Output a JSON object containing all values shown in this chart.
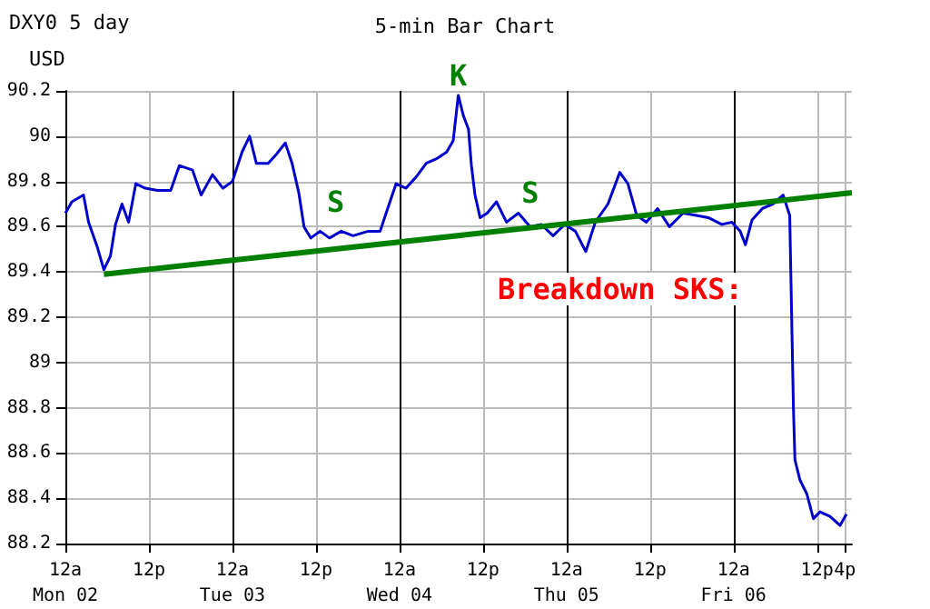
{
  "chart_data": {
    "type": "line",
    "title": "DXY0 5 day",
    "subtitle": "5-min Bar Chart",
    "ylabel": "USD",
    "xlim": [
      "--02-02T00:00",
      "--02-06T17:00"
    ],
    "ylim": [
      88.2,
      90.2
    ],
    "xticks": [
      {
        "value": "--02-02T00:00",
        "label": "12a\nMon 02"
      },
      {
        "value": "--02-02T12:00",
        "label": "12p"
      },
      {
        "value": "--02-03T00:00",
        "label": "12a\nTue 03"
      },
      {
        "value": "--02-03T12:00",
        "label": "12p"
      },
      {
        "value": "--02-04T00:00",
        "label": "12a\nWed 04"
      },
      {
        "value": "--02-04T12:00",
        "label": "12p"
      },
      {
        "value": "--02-05T00:00",
        "label": "12a\nThu 05"
      },
      {
        "value": "--02-05T12:00",
        "label": "12p"
      },
      {
        "value": "--02-06T00:00",
        "label": "12a\nFri 06"
      },
      {
        "value": "--02-06T12:00",
        "label": "12p"
      },
      {
        "value": "--02-06T16:00",
        "label": "4p"
      }
    ],
    "yticks": [
      88.2,
      88.4,
      88.6,
      88.8,
      89,
      89.2,
      89.4,
      89.6,
      89.8,
      90,
      90.2
    ],
    "grid": true,
    "marker": "none",
    "series": [
      {
        "color": "#0000cc",
        "x": [
          "--02-02T00:00",
          "--02-02T00:56",
          "--02-02T02:36",
          "--02-02T03:20",
          "--02-02T04:35",
          "--02-02T05:32",
          "--02-02T06:28",
          "--02-02T07:12",
          "--02-02T08:08",
          "--02-02T09:05",
          "--02-02T10:07",
          "--02-02T11:29",
          "--02-02T13:14",
          "--02-02T15:08",
          "--02-02T16:22",
          "--02-02T18:16",
          "--02-02T19:30",
          "--02-02T21:08",
          "--02-02T22:38",
          "--02-03T00:00",
          "--02-03T01:23",
          "--02-03T02:28",
          "--02-03T03:26",
          "--02-03T05:08",
          "--02-03T06:19",
          "--02-03T07:36",
          "--02-03T08:34",
          "--02-03T09:32",
          "--02-03T10:17",
          "--02-03T11:15",
          "--02-03T12:36",
          "--02-03T13:56",
          "--02-03T15:38",
          "--02-03T17:20",
          "--02-03T19:31",
          "--02-03T21:13",
          "--02-03T22:18",
          "--02-03T23:31",
          "--02-04T00:56",
          "--02-04T02:24",
          "--02-04T03:51",
          "--02-04T05:19",
          "--02-04T06:47",
          "--02-04T07:43",
          "--02-04T08:27",
          "--02-04T09:11",
          "--02-04T09:55",
          "--02-04T10:20",
          "--02-04T10:51",
          "--02-04T11:35",
          "--02-04T12:36",
          "--02-04T13:56",
          "--02-04T15:23",
          "--02-04T17:05",
          "--02-04T18:47",
          "--02-04T20:22",
          "--02-04T22:04",
          "--02-04T23:45",
          "--02-05T01:16",
          "--02-05T02:46",
          "--02-05T04:08",
          "--02-05T05:57",
          "--02-05T07:39",
          "--02-05T08:49",
          "--02-05T10:05",
          "--02-05T11:28",
          "--02-05T13:05",
          "--02-05T14:47",
          "--02-05T16:44",
          "--02-05T18:40",
          "--02-05T20:22",
          "--02-05T22:18",
          "--02-05T23:45",
          "--02-06T00:57",
          "--02-06T01:42",
          "--02-06T02:39",
          "--02-06T04:08",
          "--02-06T05:38",
          "--02-06T07:07",
          "--02-06T08:04",
          "--02-06T08:36",
          "--02-06T08:49",
          "--02-06T09:33",
          "--02-06T10:31",
          "--02-06T11:28",
          "--02-06T12:25",
          "--02-06T13:51",
          "--02-06T15:18",
          "--02-06T16:13"
        ],
        "values": [
          89.66,
          89.71,
          89.74,
          89.62,
          89.51,
          89.41,
          89.47,
          89.61,
          89.7,
          89.62,
          89.79,
          89.77,
          89.76,
          89.76,
          89.87,
          89.85,
          89.74,
          89.83,
          89.77,
          89.8,
          89.93,
          90.0,
          89.88,
          89.88,
          89.92,
          89.97,
          89.88,
          89.75,
          89.6,
          89.55,
          89.58,
          89.55,
          89.58,
          89.56,
          89.58,
          89.58,
          89.68,
          89.79,
          89.77,
          89.82,
          89.88,
          89.9,
          89.93,
          89.98,
          90.18,
          90.09,
          90.03,
          89.87,
          89.74,
          89.64,
          89.66,
          89.71,
          89.62,
          89.66,
          89.6,
          89.61,
          89.56,
          89.61,
          89.58,
          89.49,
          89.62,
          89.7,
          89.84,
          89.79,
          89.65,
          89.62,
          89.68,
          89.6,
          89.66,
          89.65,
          89.64,
          89.61,
          89.62,
          89.58,
          89.52,
          89.63,
          89.68,
          89.7,
          89.74,
          89.65,
          88.8,
          88.57,
          88.48,
          88.42,
          88.31,
          88.34,
          88.32,
          88.28,
          88.33
        ]
      },
      {
        "type": "line",
        "color": "#008000",
        "x": [
          "--02-02T05:32",
          "--02-06T17:00"
        ],
        "values": [
          89.39,
          89.75
        ]
      }
    ],
    "annotations": [
      {
        "text": "S",
        "x": "--02-03T14:51",
        "y": 89.62
      },
      {
        "text": "K",
        "x": "--02-04T08:27",
        "y": 90.18
      },
      {
        "text": "S",
        "x": "--02-04T18:47",
        "y": 89.66
      },
      "Breakdown SKS:"
    ]
  }
}
